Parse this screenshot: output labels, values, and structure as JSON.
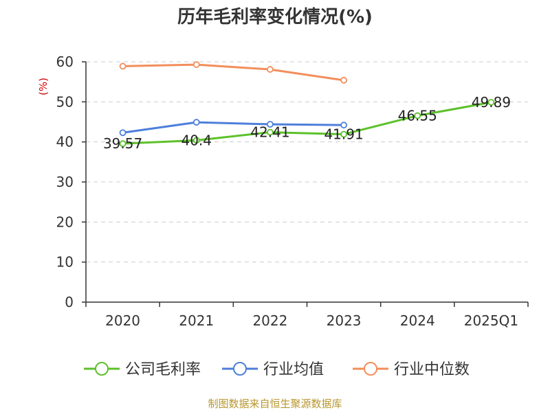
{
  "chart_data": {
    "type": "line",
    "title": "历年毛利率变化情况(%)",
    "ylabel": "(%)",
    "categories": [
      "2020",
      "2021",
      "2022",
      "2023",
      "2024",
      "2025Q1"
    ],
    "ylim": [
      0,
      60
    ],
    "yticks": [
      0,
      10,
      20,
      30,
      40,
      50,
      60
    ],
    "grid": true,
    "legend_position": "bottom",
    "series": [
      {
        "name": "公司毛利率",
        "color": "#5cc12a",
        "values": [
          39.57,
          40.4,
          42.41,
          41.91,
          46.55,
          49.89
        ],
        "show_labels": true
      },
      {
        "name": "行业均值",
        "color": "#4d7fdb",
        "values": [
          42.3,
          44.9,
          44.4,
          44.2,
          null,
          null
        ],
        "show_labels": false
      },
      {
        "name": "行业中位数",
        "color": "#f28e5b",
        "values": [
          58.9,
          59.3,
          58.1,
          55.4,
          null,
          null
        ],
        "show_labels": false
      }
    ]
  },
  "footer": {
    "source": "制图数据来自恒生聚源数据库"
  }
}
